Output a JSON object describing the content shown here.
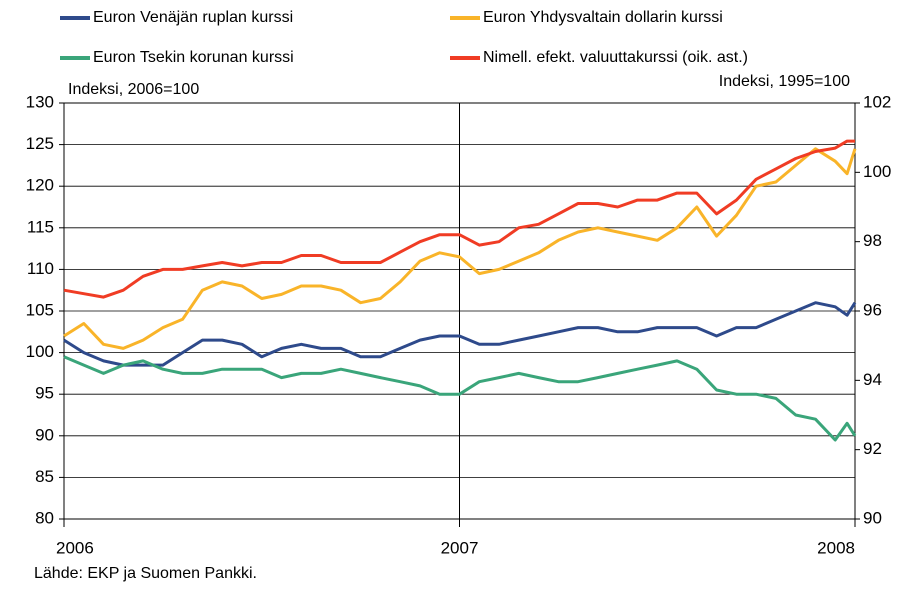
{
  "chart_data": {
    "type": "line",
    "subtitle": "Indeksi, 2006=100",
    "y2_title": "Indeksi, 1995=100",
    "source": "Lähde: EKP ja Suomen Pankki.",
    "x": [
      2006.0,
      2006.05,
      2006.1,
      2006.15,
      2006.2,
      2006.25,
      2006.3,
      2006.35,
      2006.4,
      2006.45,
      2006.5,
      2006.55,
      2006.6,
      2006.65,
      2006.7,
      2006.75,
      2006.8,
      2006.85,
      2006.9,
      2006.95,
      2007.0,
      2007.05,
      2007.1,
      2007.15,
      2007.2,
      2007.25,
      2007.3,
      2007.35,
      2007.4,
      2007.45,
      2007.5,
      2007.55,
      2007.6,
      2007.65,
      2007.7,
      2007.75,
      2007.8,
      2007.85,
      2007.9,
      2007.95,
      2007.98,
      2008.0
    ],
    "xlim": [
      2006,
      2008
    ],
    "xticks": [
      2006,
      2007,
      2008
    ],
    "ylim": [
      80,
      130
    ],
    "yticks": [
      80,
      85,
      90,
      95,
      100,
      105,
      110,
      115,
      120,
      125,
      130
    ],
    "y2lim": [
      90,
      102
    ],
    "y2ticks": [
      90,
      92,
      94,
      96,
      98,
      100,
      102
    ],
    "grid": true,
    "series": [
      {
        "name": "Euron Venäjän ruplan kurssi",
        "color": "#2e4a8b",
        "values": [
          101.5,
          100,
          99,
          98.5,
          98.5,
          98.5,
          100,
          101.5,
          101.5,
          101,
          99.5,
          100.5,
          101,
          100.5,
          100.5,
          99.5,
          99.5,
          100.5,
          101.5,
          102,
          102,
          101,
          101,
          101.5,
          102,
          102.5,
          103,
          103,
          102.5,
          102.5,
          103,
          103,
          103,
          102,
          103,
          103,
          104,
          105,
          106,
          105.5,
          104.5,
          106
        ]
      },
      {
        "name": "Euron Yhdysvaltain dollarin kurssi",
        "color": "#f9b429",
        "values": [
          102,
          103.5,
          101,
          100.5,
          101.5,
          103,
          104,
          107.5,
          108.5,
          108,
          106.5,
          107,
          108,
          108,
          107.5,
          106,
          106.5,
          108.5,
          111,
          112,
          111.5,
          109.5,
          110,
          111,
          112,
          113.5,
          114.5,
          115,
          114.5,
          114,
          113.5,
          115,
          117.5,
          114,
          116.5,
          120,
          120.5,
          122.5,
          124.5,
          123,
          121.5,
          124.5
        ]
      },
      {
        "name": "Euron Tsekin korunan kurssi",
        "color": "#3aa57a",
        "values": [
          99.5,
          98.5,
          97.5,
          98.5,
          99,
          98,
          97.5,
          97.5,
          98,
          98,
          98,
          97,
          97.5,
          97.5,
          98,
          97.5,
          97,
          96.5,
          96,
          95,
          95,
          96.5,
          97,
          97.5,
          97,
          96.5,
          96.5,
          97,
          97.5,
          98,
          98.5,
          99,
          98,
          95.5,
          95,
          95,
          94.5,
          92.5,
          92,
          89.5,
          91.5,
          90
        ]
      },
      {
        "name": "Nimell. efekt. valuuttakurssi (oik. ast.)",
        "color": "#f03c24",
        "axis": "y2",
        "values": [
          96.6,
          96.5,
          96.4,
          96.6,
          97.0,
          97.2,
          97.2,
          97.3,
          97.4,
          97.3,
          97.4,
          97.4,
          97.6,
          97.6,
          97.4,
          97.4,
          97.4,
          97.7,
          98.0,
          98.2,
          98.2,
          97.9,
          98.0,
          98.4,
          98.5,
          98.8,
          99.1,
          99.1,
          99.0,
          99.2,
          99.2,
          99.4,
          99.4,
          98.8,
          99.2,
          99.8,
          100.1,
          100.4,
          100.6,
          100.7,
          100.9,
          100.9
        ]
      }
    ]
  }
}
